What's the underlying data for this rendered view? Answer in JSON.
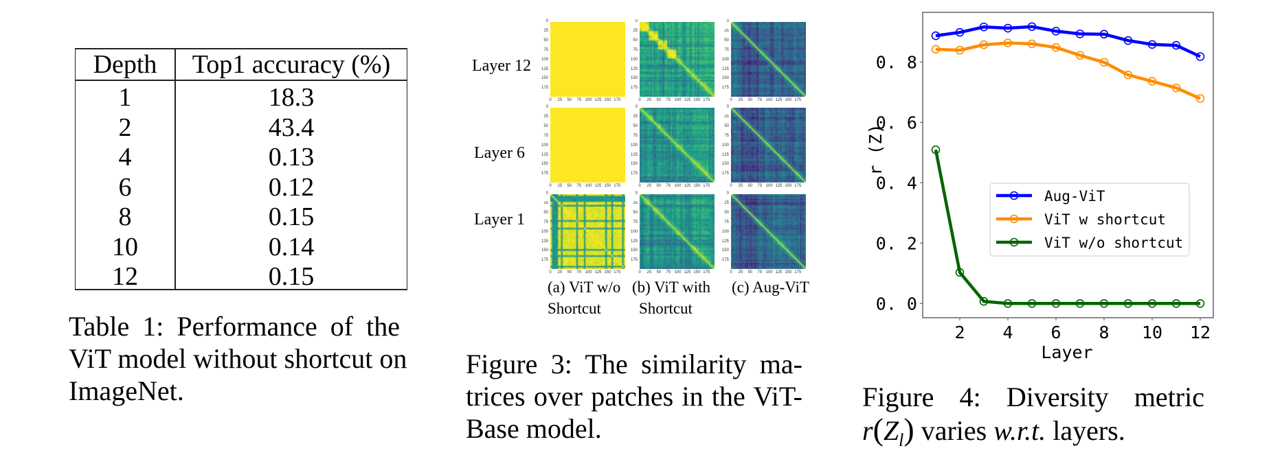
{
  "table1": {
    "headers": [
      "Depth",
      "Top1 accuracy (%)"
    ],
    "rows": [
      [
        "1",
        "18.3"
      ],
      [
        "2",
        "43.4"
      ],
      [
        "4",
        "0.13"
      ],
      [
        "6",
        "0.12"
      ],
      [
        "8",
        "0.15"
      ],
      [
        "10",
        "0.14"
      ],
      [
        "12",
        "0.15"
      ]
    ],
    "caption_lines": [
      "Table 1:  Performance of the",
      "ViT model without shortcut on",
      "ImageNet."
    ]
  },
  "figure3": {
    "row_labels": [
      "Layer 12",
      "Layer 6",
      "Layer 1"
    ],
    "columns": [
      {
        "sub_line1": "(a) ViT w/o",
        "sub_line2": "Shortcut",
        "patterns": [
          "uniform",
          "uniform",
          "striped-bright"
        ]
      },
      {
        "sub_line1": "(b) ViT with",
        "sub_line2": "Shortcut",
        "patterns": [
          "blocky-mid",
          "mid",
          "mid"
        ]
      },
      {
        "sub_line1": "(c) Aug-ViT",
        "sub_line2": "",
        "patterns": [
          "dark",
          "dark",
          "dark"
        ]
      }
    ],
    "matrix_ticks": [
      "0",
      "25",
      "50",
      "75",
      "100",
      "125",
      "150",
      "175"
    ],
    "matrix_size": 196,
    "colormap": "viridis",
    "caption_lines": [
      "Figure 3:  The similarity ma-",
      "trices over patches in the ViT-",
      "Base model."
    ]
  },
  "figure4": {
    "caption_line1": "Figure 4:   Diversity metric",
    "caption_line2_parts": {
      "math_r": "r",
      "math_open": "(",
      "math_Z": "Z",
      "math_sub": "l",
      "math_close": ")",
      "text": " varies ",
      "italic": "w.r.t.",
      "tail": " layers."
    }
  },
  "chart_data": {
    "type": "line",
    "title": "",
    "xlabel": "Layer",
    "ylabel": "r (Z)",
    "x": [
      1,
      2,
      3,
      4,
      5,
      6,
      7,
      8,
      9,
      10,
      11,
      12
    ],
    "xticks": [
      2,
      4,
      6,
      8,
      10,
      12
    ],
    "xtick_labels": [
      "2",
      "4",
      "6",
      "8",
      "10",
      "12"
    ],
    "yticks": [
      0.0,
      0.2,
      0.4,
      0.6,
      0.8
    ],
    "ytick_labels": [
      "0. 0",
      "0. 2",
      "0. 4",
      "0. 6",
      "0. 8"
    ],
    "xlim": [
      0.45,
      12.55
    ],
    "ylim": [
      -0.045,
      0.965
    ],
    "grid": false,
    "legend_position": "center-right",
    "marker": "open-circle",
    "series": [
      {
        "name": "Aug-ViT",
        "color": "#0000ff",
        "values": [
          0.887,
          0.898,
          0.916,
          0.912,
          0.917,
          0.902,
          0.893,
          0.892,
          0.871,
          0.858,
          0.855,
          0.818
        ]
      },
      {
        "name": "ViT w shortcut",
        "color": "#ff8c00",
        "values": [
          0.842,
          0.839,
          0.857,
          0.863,
          0.86,
          0.848,
          0.822,
          0.799,
          0.757,
          0.736,
          0.714,
          0.679
        ]
      },
      {
        "name": "ViT w/o shortcut",
        "color": "#006400",
        "values": [
          0.509,
          0.103,
          0.007,
          0.0,
          0.0,
          0.0,
          0.0,
          0.0,
          0.0,
          0.0,
          0.0,
          0.0
        ]
      }
    ]
  }
}
